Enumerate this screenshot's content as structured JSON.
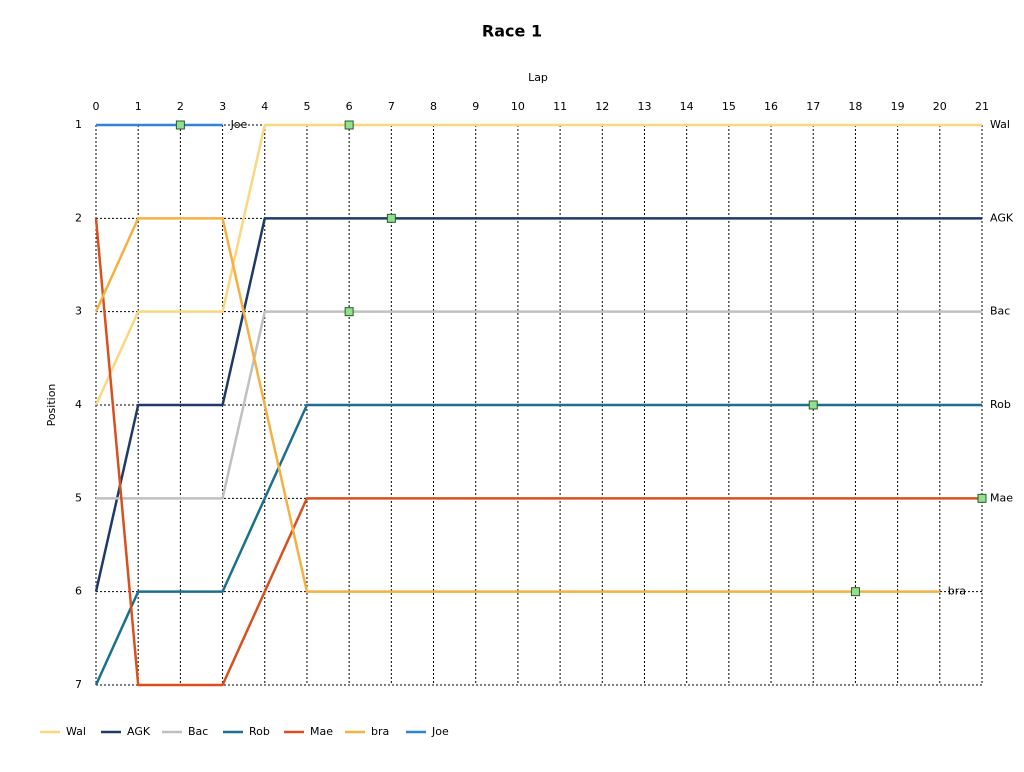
{
  "chart_data": {
    "type": "line",
    "title": "Race 1",
    "x_label": "Lap",
    "y_label": "Position",
    "x": [
      0,
      1,
      2,
      3,
      4,
      5,
      6,
      7,
      8,
      9,
      10,
      11,
      12,
      13,
      14,
      15,
      16,
      17,
      18,
      19,
      20,
      21
    ],
    "xlim": [
      0,
      21
    ],
    "xticks": [
      0,
      1,
      2,
      3,
      4,
      5,
      6,
      7,
      8,
      9,
      10,
      11,
      12,
      13,
      14,
      15,
      16,
      17,
      18,
      19,
      20,
      21
    ],
    "ylim": [
      1,
      7
    ],
    "yticks": [
      1,
      2,
      3,
      4,
      5,
      6,
      7
    ],
    "y_reversed": true,
    "grid": true,
    "legend": "bottom",
    "series": [
      {
        "name": "Wal",
        "color": "#fbd77f",
        "marker_x": 6,
        "values": [
          4,
          3,
          3,
          3,
          1,
          1,
          1,
          1,
          1,
          1,
          1,
          1,
          1,
          1,
          1,
          1,
          1,
          1,
          1,
          1,
          1,
          1
        ]
      },
      {
        "name": "AGK",
        "color": "#1f3a68",
        "marker_x": 7,
        "values": [
          6,
          4,
          4,
          4,
          2,
          2,
          2,
          2,
          2,
          2,
          2,
          2,
          2,
          2,
          2,
          2,
          2,
          2,
          2,
          2,
          2,
          2
        ]
      },
      {
        "name": "Bac",
        "color": "#c0c0c0",
        "marker_x": 6,
        "values": [
          5,
          5,
          5,
          5,
          3,
          3,
          3,
          3,
          3,
          3,
          3,
          3,
          3,
          3,
          3,
          3,
          3,
          3,
          3,
          3,
          3,
          3
        ]
      },
      {
        "name": "Rob",
        "color": "#1b6f8f",
        "marker_x": 17,
        "values": [
          7,
          6,
          6,
          6,
          5,
          4,
          4,
          4,
          4,
          4,
          4,
          4,
          4,
          4,
          4,
          4,
          4,
          4,
          4,
          4,
          4,
          4
        ]
      },
      {
        "name": "Mae",
        "color": "#d9501f",
        "marker_x": 21,
        "values": [
          2,
          7,
          7,
          7,
          6,
          5,
          5,
          5,
          5,
          5,
          5,
          5,
          5,
          5,
          5,
          5,
          5,
          5,
          5,
          5,
          5,
          5
        ]
      },
      {
        "name": "bra",
        "color": "#f5b041",
        "marker_x": 18,
        "values": [
          3,
          2,
          2,
          2,
          4,
          6,
          6,
          6,
          6,
          6,
          6,
          6,
          6,
          6,
          6,
          6,
          6,
          6,
          6,
          6,
          6,
          null
        ]
      },
      {
        "name": "Joe",
        "color": "#3182d8",
        "marker_x": 2,
        "values": [
          1,
          1,
          1,
          1,
          null,
          null,
          null,
          null,
          null,
          null,
          null,
          null,
          null,
          null,
          null,
          null,
          null,
          null,
          null,
          null,
          null,
          null
        ]
      }
    ]
  }
}
